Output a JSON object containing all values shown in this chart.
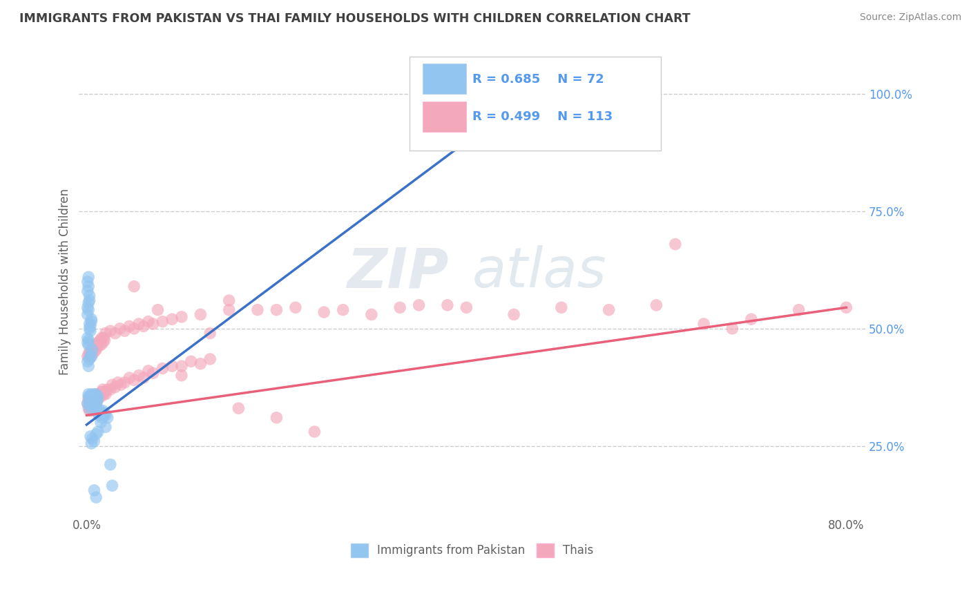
{
  "title": "IMMIGRANTS FROM PAKISTAN VS THAI FAMILY HOUSEHOLDS WITH CHILDREN CORRELATION CHART",
  "source": "Source: ZipAtlas.com",
  "ylabel": "Family Households with Children",
  "blue_color": "#92C5F0",
  "pink_color": "#F4A8BC",
  "blue_line_color": "#3B72C8",
  "pink_line_color": "#E8607A",
  "watermark_zip": "ZIP",
  "watermark_atlas": "atlas",
  "background_color": "#FFFFFF",
  "grid_color": "#CCCCCC",
  "title_color": "#404040",
  "axis_label_color": "#606060",
  "right_tick_color": "#5599EE",
  "legend_r_blue": "R = 0.685",
  "legend_n_blue": "N = 72",
  "legend_r_pink": "R = 0.499",
  "legend_n_pink": "N = 113",
  "blue_line_x": [
    0.0,
    0.5
  ],
  "blue_line_y": [
    0.295,
    1.05
  ],
  "pink_line_x": [
    0.0,
    0.8
  ],
  "pink_line_y": [
    0.315,
    0.545
  ],
  "xlim": [
    -0.008,
    0.82
  ],
  "ylim": [
    0.1,
    1.1
  ],
  "xtick_positions": [
    0.0,
    0.2,
    0.4,
    0.6,
    0.8
  ],
  "xtick_labels": [
    "0.0%",
    "",
    "",
    "",
    "80.0%"
  ],
  "ytick_positions": [
    0.25,
    0.5,
    0.75,
    1.0
  ],
  "ytick_labels": [
    "25.0%",
    "50.0%",
    "75.0%",
    "100.0%"
  ],
  "blue_x": [
    0.001,
    0.002,
    0.002,
    0.003,
    0.003,
    0.003,
    0.004,
    0.004,
    0.005,
    0.005,
    0.005,
    0.005,
    0.006,
    0.006,
    0.007,
    0.007,
    0.008,
    0.008,
    0.009,
    0.01,
    0.01,
    0.011,
    0.011,
    0.012,
    0.001,
    0.002,
    0.003,
    0.004,
    0.005,
    0.006,
    0.001,
    0.001,
    0.002,
    0.002,
    0.003,
    0.003,
    0.004,
    0.004,
    0.005,
    0.005,
    0.001,
    0.001,
    0.002,
    0.002,
    0.003,
    0.003,
    0.001,
    0.001,
    0.002,
    0.002,
    0.012,
    0.013,
    0.014,
    0.015,
    0.016,
    0.017,
    0.018,
    0.019,
    0.02,
    0.022,
    0.025,
    0.027,
    0.01,
    0.012,
    0.008,
    0.006,
    0.004,
    0.005,
    0.015,
    0.02,
    0.008,
    0.01
  ],
  "blue_y": [
    0.34,
    0.36,
    0.355,
    0.34,
    0.33,
    0.35,
    0.345,
    0.355,
    0.335,
    0.345,
    0.36,
    0.35,
    0.34,
    0.355,
    0.345,
    0.34,
    0.35,
    0.36,
    0.345,
    0.36,
    0.335,
    0.345,
    0.35,
    0.355,
    0.43,
    0.42,
    0.435,
    0.445,
    0.44,
    0.455,
    0.48,
    0.47,
    0.475,
    0.465,
    0.5,
    0.51,
    0.495,
    0.505,
    0.52,
    0.515,
    0.53,
    0.545,
    0.555,
    0.54,
    0.56,
    0.57,
    0.6,
    0.58,
    0.59,
    0.61,
    0.32,
    0.315,
    0.325,
    0.32,
    0.31,
    0.325,
    0.315,
    0.32,
    0.315,
    0.31,
    0.21,
    0.165,
    0.275,
    0.28,
    0.26,
    0.265,
    0.27,
    0.255,
    0.3,
    0.29,
    0.155,
    0.14
  ],
  "pink_x": [
    0.001,
    0.002,
    0.002,
    0.003,
    0.003,
    0.003,
    0.004,
    0.004,
    0.005,
    0.005,
    0.005,
    0.006,
    0.006,
    0.007,
    0.007,
    0.008,
    0.008,
    0.009,
    0.01,
    0.01,
    0.011,
    0.011,
    0.012,
    0.013,
    0.014,
    0.015,
    0.016,
    0.017,
    0.018,
    0.019,
    0.02,
    0.022,
    0.025,
    0.027,
    0.03,
    0.033,
    0.036,
    0.04,
    0.045,
    0.05,
    0.055,
    0.06,
    0.065,
    0.07,
    0.08,
    0.09,
    0.1,
    0.11,
    0.12,
    0.13,
    0.001,
    0.002,
    0.003,
    0.004,
    0.005,
    0.006,
    0.007,
    0.008,
    0.009,
    0.01,
    0.011,
    0.012,
    0.013,
    0.014,
    0.015,
    0.016,
    0.017,
    0.018,
    0.019,
    0.02,
    0.025,
    0.03,
    0.035,
    0.04,
    0.045,
    0.05,
    0.055,
    0.06,
    0.065,
    0.07,
    0.08,
    0.09,
    0.1,
    0.12,
    0.15,
    0.18,
    0.22,
    0.27,
    0.33,
    0.38,
    0.15,
    0.2,
    0.25,
    0.3,
    0.35,
    0.4,
    0.45,
    0.5,
    0.55,
    0.6,
    0.65,
    0.7,
    0.75,
    0.8,
    0.62,
    0.68,
    0.05,
    0.075,
    0.1,
    0.13,
    0.16,
    0.2,
    0.24
  ],
  "pink_y": [
    0.34,
    0.33,
    0.35,
    0.335,
    0.345,
    0.325,
    0.34,
    0.33,
    0.345,
    0.335,
    0.325,
    0.34,
    0.33,
    0.335,
    0.345,
    0.33,
    0.34,
    0.335,
    0.34,
    0.35,
    0.345,
    0.355,
    0.35,
    0.36,
    0.36,
    0.355,
    0.365,
    0.37,
    0.36,
    0.365,
    0.36,
    0.37,
    0.37,
    0.38,
    0.375,
    0.385,
    0.38,
    0.385,
    0.395,
    0.39,
    0.4,
    0.395,
    0.41,
    0.405,
    0.415,
    0.42,
    0.42,
    0.43,
    0.425,
    0.435,
    0.44,
    0.445,
    0.45,
    0.44,
    0.455,
    0.445,
    0.46,
    0.45,
    0.465,
    0.455,
    0.46,
    0.47,
    0.465,
    0.475,
    0.465,
    0.48,
    0.47,
    0.48,
    0.475,
    0.49,
    0.495,
    0.49,
    0.5,
    0.495,
    0.505,
    0.5,
    0.51,
    0.505,
    0.515,
    0.51,
    0.515,
    0.52,
    0.525,
    0.53,
    0.54,
    0.54,
    0.545,
    0.54,
    0.545,
    0.55,
    0.56,
    0.54,
    0.535,
    0.53,
    0.55,
    0.545,
    0.53,
    0.545,
    0.54,
    0.55,
    0.51,
    0.52,
    0.54,
    0.545,
    0.68,
    0.5,
    0.59,
    0.54,
    0.4,
    0.49,
    0.33,
    0.31,
    0.28
  ]
}
